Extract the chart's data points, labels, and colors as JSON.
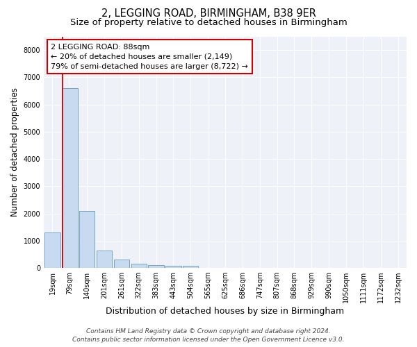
{
  "title": "2, LEGGING ROAD, BIRMINGHAM, B38 9ER",
  "subtitle": "Size of property relative to detached houses in Birmingham",
  "xlabel": "Distribution of detached houses by size in Birmingham",
  "ylabel": "Number of detached properties",
  "categories": [
    "19sqm",
    "79sqm",
    "140sqm",
    "201sqm",
    "261sqm",
    "322sqm",
    "383sqm",
    "443sqm",
    "504sqm",
    "565sqm",
    "625sqm",
    "686sqm",
    "747sqm",
    "807sqm",
    "868sqm",
    "929sqm",
    "990sqm",
    "1050sqm",
    "1111sqm",
    "1172sqm",
    "1232sqm"
  ],
  "values": [
    1300,
    6600,
    2100,
    650,
    300,
    160,
    110,
    75,
    75,
    0,
    0,
    0,
    0,
    0,
    0,
    0,
    0,
    0,
    0,
    0,
    0
  ],
  "bar_color": "#c8daf0",
  "bar_edge_color": "#6699bb",
  "red_line_index": 1,
  "annotation_text": "2 LEGGING ROAD: 88sqm\n← 20% of detached houses are smaller (2,149)\n79% of semi-detached houses are larger (8,722) →",
  "annotation_box_facecolor": "#ffffff",
  "annotation_box_edgecolor": "#cc0000",
  "ylim": [
    0,
    8500
  ],
  "yticks": [
    0,
    1000,
    2000,
    3000,
    4000,
    5000,
    6000,
    7000,
    8000
  ],
  "plot_bg_color": "#eef2f8",
  "fig_bg_color": "#ffffff",
  "grid_color": "#ffffff",
  "footer_line1": "Contains HM Land Registry data © Crown copyright and database right 2024.",
  "footer_line2": "Contains public sector information licensed under the Open Government Licence v3.0.",
  "title_fontsize": 10.5,
  "subtitle_fontsize": 9.5,
  "xlabel_fontsize": 9,
  "ylabel_fontsize": 8.5,
  "tick_fontsize": 7,
  "annotation_fontsize": 8,
  "footer_fontsize": 6.5
}
